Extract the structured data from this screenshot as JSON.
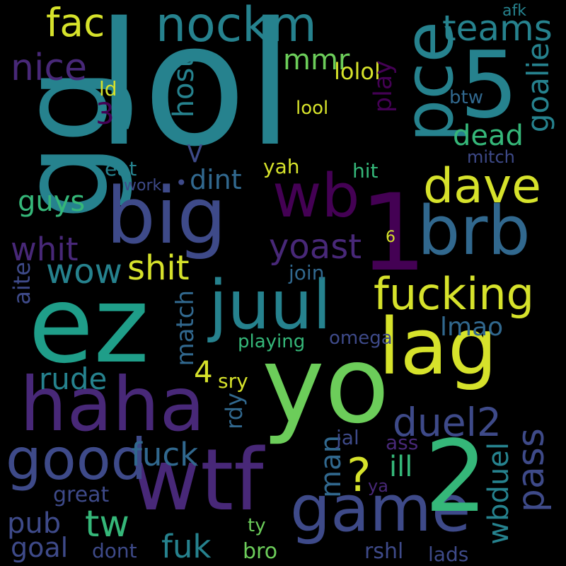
{
  "palette": {
    "background": "#000000",
    "yellow": "#d6e22b",
    "lime": "#6ccd5a",
    "green": "#35b779",
    "teal": "#1f9e89",
    "cyan": "#26828e",
    "blue": "#31688e",
    "indigo": "#3e4a89",
    "violet": "#482878",
    "purple": "#440154"
  },
  "words": [
    {
      "text": "lol",
      "color": "#26828e"
    },
    {
      "text": "ez",
      "color": "#1f9e89"
    },
    {
      "text": "yo",
      "color": "#6ccd5a"
    },
    {
      "text": "gg",
      "color": "#26828e"
    },
    {
      "text": "big",
      "color": "#3e4a89"
    },
    {
      "text": "haha",
      "color": "#482878"
    },
    {
      "text": "wtf",
      "color": "#482878"
    },
    {
      "text": "lag",
      "color": "#d6e22b"
    },
    {
      "text": "juul",
      "color": "#26828e"
    },
    {
      "text": "pce",
      "color": "#26828e"
    },
    {
      "text": "wb",
      "color": "#440154"
    },
    {
      "text": "brb",
      "color": "#31688e"
    },
    {
      "text": "nockm",
      "color": "#26828e"
    },
    {
      "text": "game",
      "color": "#3e4a89"
    },
    {
      "text": "good",
      "color": "#3e4a89"
    },
    {
      "text": "5",
      "color": "#26828e"
    },
    {
      "text": "1",
      "color": "#440154"
    },
    {
      "text": "2",
      "color": "#35b779"
    },
    {
      "text": "dave",
      "color": "#d6e22b"
    },
    {
      "text": "fucking",
      "color": "#d6e22b"
    },
    {
      "text": "fac",
      "color": "#d6e22b"
    },
    {
      "text": "teams",
      "color": "#26828e"
    },
    {
      "text": "nice",
      "color": "#482878"
    },
    {
      "text": "goalie",
      "color": "#26828e"
    },
    {
      "text": "duel2",
      "color": "#3e4a89"
    },
    {
      "text": "pass",
      "color": "#3e4a89"
    },
    {
      "text": "wow",
      "color": "#26828e"
    },
    {
      "text": "shit",
      "color": "#d6e22b"
    },
    {
      "text": "yoast",
      "color": "#482878"
    },
    {
      "text": "fuck",
      "color": "#31688e"
    },
    {
      "text": "fuk",
      "color": "#26828e"
    },
    {
      "text": "tw",
      "color": "#35b779"
    },
    {
      "text": "mmr",
      "color": "#6ccd5a"
    },
    {
      "text": "lolol",
      "color": "#d6e22b"
    },
    {
      "text": "host",
      "color": "#26828e"
    },
    {
      "text": "play",
      "color": "#440154"
    },
    {
      "text": "lool",
      "color": "#d6e22b"
    },
    {
      "text": "dead",
      "color": "#35b779"
    },
    {
      "text": "btw",
      "color": "#31688e"
    },
    {
      "text": "afk",
      "color": "#26828e"
    },
    {
      "text": "mitch",
      "color": "#3e4a89"
    },
    {
      "text": "3",
      "color": "#440154"
    },
    {
      "text": "ld",
      "color": "#d6e22b"
    },
    {
      "text": "dint",
      "color": "#31688e"
    },
    {
      "text": "eat",
      "color": "#26828e"
    },
    {
      "text": "work",
      "color": "#3e4a89"
    },
    {
      "text": "yah",
      "color": "#d6e22b"
    },
    {
      "text": "hit",
      "color": "#35b779"
    },
    {
      "text": "guys",
      "color": "#35b779"
    },
    {
      "text": "whit",
      "color": "#482878"
    },
    {
      "text": "aite",
      "color": "#3e4a89"
    },
    {
      "text": "match",
      "color": "#31688e"
    },
    {
      "text": "join",
      "color": "#31688e"
    },
    {
      "text": "lmao",
      "color": "#31688e"
    },
    {
      "text": "6",
      "color": "#d6e22b"
    },
    {
      "text": "playing",
      "color": "#35b779"
    },
    {
      "text": "omega",
      "color": "#3e4a89"
    },
    {
      "text": "4",
      "color": "#d6e22b"
    },
    {
      "text": "sry",
      "color": "#d6e22b"
    },
    {
      "text": "rdy",
      "color": "#31688e"
    },
    {
      "text": "rude",
      "color": "#26828e"
    },
    {
      "text": "man",
      "color": "#31688e"
    },
    {
      "text": "ill",
      "color": "#35b779"
    },
    {
      "text": "?",
      "color": "#d6e22b"
    },
    {
      "text": "jal",
      "color": "#3e4a89"
    },
    {
      "text": "ass",
      "color": "#482878"
    },
    {
      "text": "ya",
      "color": "#482878"
    },
    {
      "text": "wbduel",
      "color": "#26828e"
    },
    {
      "text": "great",
      "color": "#3e4a89"
    },
    {
      "text": "pub",
      "color": "#3e4a89"
    },
    {
      "text": "goal",
      "color": "#3e4a89"
    },
    {
      "text": "ty",
      "color": "#6ccd5a"
    },
    {
      "text": "dont",
      "color": "#3e4a89"
    },
    {
      "text": "bro",
      "color": "#6ccd5a"
    },
    {
      "text": "rshl",
      "color": "#3e4a89"
    },
    {
      "text": "lads",
      "color": "#3e4a89"
    },
    {
      "text": "<",
      "color": "#3e4a89"
    },
    {
      "text": "•",
      "color": "#3e4a89"
    }
  ]
}
